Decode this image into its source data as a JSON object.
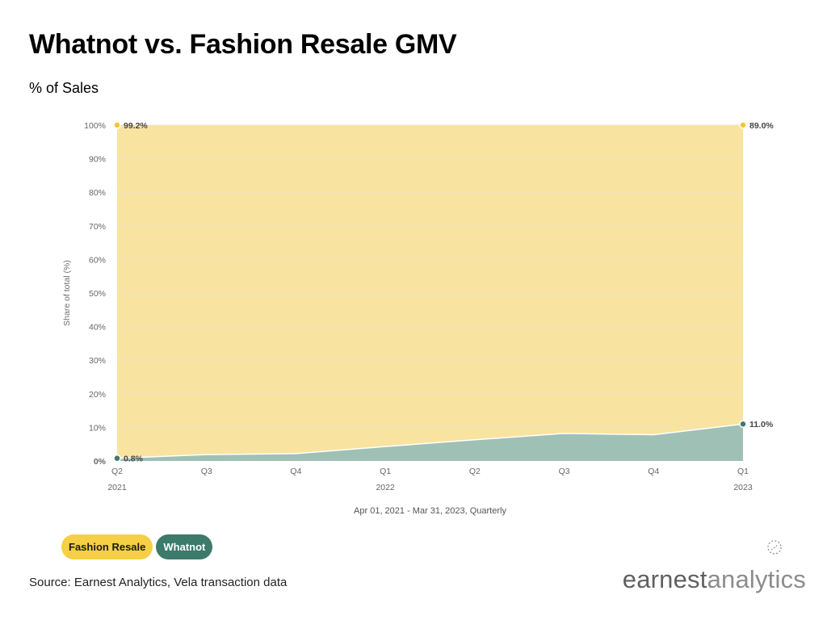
{
  "header": {
    "title": "Whatnot vs. Fashion Resale GMV",
    "subtitle": "% of Sales"
  },
  "legend": {
    "items": [
      {
        "label": "Fashion Resale",
        "color": "#f6cf45"
      },
      {
        "label": "Whatnot",
        "color": "#3c7a6b"
      }
    ]
  },
  "footer": {
    "source": "Source: Earnest Analytics, Vela transaction data",
    "brand_bold": "earnest",
    "brand_light": "analytics"
  },
  "colors": {
    "fashion_area": "#f8e3a0",
    "fashion_marker": "#f6c537",
    "whatnot_area": "#9fc1b5",
    "whatnot_marker": "#3c7a6b",
    "grid": "#ece4c6"
  },
  "chart_data": {
    "type": "area",
    "stacked": true,
    "categories": [
      "Q2",
      "Q3",
      "Q4",
      "Q1",
      "Q2",
      "Q3",
      "Q4",
      "Q1"
    ],
    "years": [
      "2021",
      "",
      "",
      "2022",
      "",
      "",
      "",
      "2023"
    ],
    "series": [
      {
        "name": "Whatnot",
        "values": [
          0.8,
          1.9,
          2.2,
          4.3,
          6.3,
          8.2,
          7.8,
          11.0
        ]
      },
      {
        "name": "Fashion Resale",
        "values": [
          99.2,
          98.1,
          97.8,
          95.7,
          93.7,
          91.8,
          92.2,
          89.0
        ]
      }
    ],
    "data_labels": [
      {
        "series": "Fashion Resale",
        "index": 0,
        "text": "99.2%"
      },
      {
        "series": "Fashion Resale",
        "index": 7,
        "text": "89.0%"
      },
      {
        "series": "Whatnot",
        "index": 0,
        "text": "0.8%"
      },
      {
        "series": "Whatnot",
        "index": 7,
        "text": "11.0%"
      }
    ],
    "y_ticks": [
      "0%",
      "10%",
      "20%",
      "30%",
      "40%",
      "50%",
      "60%",
      "70%",
      "80%",
      "90%",
      "100%"
    ],
    "ylim": [
      0,
      100
    ],
    "ylabel": "Share of total (%)",
    "xlabel": "Apr 01, 2021 - Mar 31, 2023, Quarterly",
    "grid": true,
    "legend_position": "bottom-left"
  }
}
